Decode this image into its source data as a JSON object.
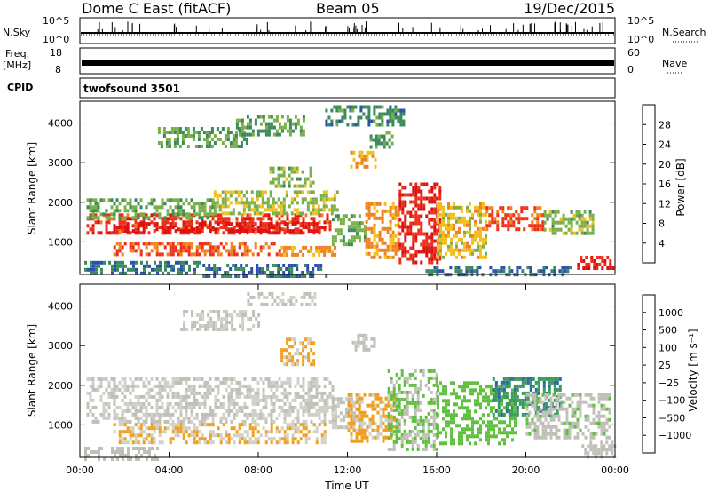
{
  "header": {
    "station": "Dome C East (fitACF)",
    "beam": "Beam 05",
    "date": "19/Dec/2015"
  },
  "side_labels": {
    "nsky": "N.Sky",
    "nsearch": "N.Search",
    "freq": "Freq.",
    "freq_unit": "[MHz]",
    "nave": "Nave",
    "cpid": "CPID",
    "cpid_value": "twofsound 3501"
  },
  "strip_axes": {
    "noise_left": [
      "10^5",
      "10^0"
    ],
    "noise_right": [
      "10^5",
      "10^0"
    ],
    "freq_left": [
      "18",
      "8"
    ],
    "nave_right": [
      "60",
      "0"
    ]
  },
  "colors": {
    "power_scale": [
      "#1a1aff",
      "#2a50b0",
      "#3a8a5a",
      "#7ab04a",
      "#f0c020",
      "#f08020",
      "#ee3018",
      "#dd1010"
    ],
    "velocity_scale": [
      "#2040c0",
      "#2d6aa8",
      "#3a9a5a",
      "#60c040",
      "#c0c0b8",
      "#d0d0c8",
      "#f0a020",
      "#f07010",
      "#ee3010",
      "#dd1010"
    ]
  },
  "chart_data": [
    {
      "type": "heatmap",
      "name": "power",
      "xlabel": "",
      "ylabel": "Slant Range [km]",
      "x_range_hours": [
        0,
        24
      ],
      "ylim_km": [
        180,
        4550
      ],
      "y_ticks": [
        "1000",
        "2000",
        "3000",
        "4000"
      ],
      "colorbar_title": "Power [dB]",
      "colorbar_ticks": [
        "4",
        "8",
        "12",
        "16",
        "20",
        "24",
        "28"
      ],
      "colorbar_range": [
        0,
        32
      ],
      "blobs": [
        {
          "t0": 0.3,
          "t1": 11.2,
          "r0": 1250,
          "r1": 1720,
          "v": 26
        },
        {
          "t0": 1.5,
          "t1": 11.0,
          "r0": 1300,
          "r1": 1500,
          "v": 29
        },
        {
          "t0": 0.3,
          "t1": 6.0,
          "r0": 1650,
          "r1": 2100,
          "v": 13
        },
        {
          "t0": 6.0,
          "t1": 11.5,
          "r0": 1700,
          "r1": 2300,
          "v": 15
        },
        {
          "t0": 1.5,
          "t1": 9.0,
          "r0": 650,
          "r1": 1000,
          "v": 24
        },
        {
          "t0": 9.0,
          "t1": 11.5,
          "r0": 650,
          "r1": 900,
          "v": 21
        },
        {
          "t0": 0.2,
          "t1": 5.5,
          "r0": 180,
          "r1": 520,
          "v": 9
        },
        {
          "t0": 5.5,
          "t1": 11.0,
          "r0": 180,
          "r1": 450,
          "v": 8
        },
        {
          "t0": 11.3,
          "t1": 12.8,
          "r0": 900,
          "r1": 1700,
          "v": 13
        },
        {
          "t0": 12.8,
          "t1": 14.3,
          "r0": 600,
          "r1": 2000,
          "v": 21
        },
        {
          "t0": 14.3,
          "t1": 16.2,
          "r0": 500,
          "r1": 2500,
          "v": 28
        },
        {
          "t0": 16.0,
          "t1": 18.2,
          "r0": 600,
          "r1": 2000,
          "v": 18
        },
        {
          "t0": 18.2,
          "t1": 20.8,
          "r0": 1350,
          "r1": 1900,
          "v": 25
        },
        {
          "t0": 20.8,
          "t1": 23.0,
          "r0": 1200,
          "r1": 1800,
          "v": 14
        },
        {
          "t0": 22.3,
          "t1": 23.9,
          "r0": 300,
          "r1": 650,
          "v": 27
        },
        {
          "t0": 15.5,
          "t1": 22.0,
          "r0": 180,
          "r1": 400,
          "v": 8
        },
        {
          "t0": 12.0,
          "t1": 13.2,
          "r0": 2900,
          "r1": 3300,
          "v": 19
        },
        {
          "t0": 3.5,
          "t1": 7.5,
          "r0": 3400,
          "r1": 3900,
          "v": 12
        },
        {
          "t0": 7.0,
          "t1": 10.0,
          "r0": 3700,
          "r1": 4200,
          "v": 12
        },
        {
          "t0": 11.0,
          "t1": 14.5,
          "r0": 4000,
          "r1": 4450,
          "v": 10
        },
        {
          "t0": 8.5,
          "t1": 10.5,
          "r0": 2400,
          "r1": 2900,
          "v": 14
        },
        {
          "t0": 13.0,
          "t1": 14.0,
          "r0": 3400,
          "r1": 3800,
          "v": 12
        }
      ]
    },
    {
      "type": "heatmap",
      "name": "velocity",
      "xlabel": "Time UT",
      "ylabel": "Slant Range [km]",
      "x_range_hours": [
        0,
        24
      ],
      "ylim_km": [
        180,
        4550
      ],
      "x_ticks": [
        "00:00",
        "04:00",
        "08:00",
        "12:00",
        "16:00",
        "20:00",
        "00:00"
      ],
      "y_ticks": [
        "1000",
        "2000",
        "3000",
        "4000"
      ],
      "colorbar_title": "Velocity [m s^-1]",
      "colorbar_ticks": [
        "1000",
        "500",
        "100",
        "25",
        "−25",
        "−100",
        "−500",
        "−1000"
      ],
      "colorbar_range": [
        -1250,
        1250
      ],
      "blobs": [
        {
          "t0": 0.3,
          "t1": 11.3,
          "r0": 1100,
          "r1": 2200,
          "v": 0
        },
        {
          "t0": 1.5,
          "t1": 11.0,
          "r0": 600,
          "r1": 1050,
          "v": -250
        },
        {
          "t0": 0.2,
          "t1": 3.5,
          "r0": 180,
          "r1": 450,
          "v": 150
        },
        {
          "t0": 11.3,
          "t1": 12.5,
          "r0": 900,
          "r1": 1700,
          "v": 30
        },
        {
          "t0": 12.0,
          "t1": 14.2,
          "r0": 600,
          "r1": 1800,
          "v": -300
        },
        {
          "t0": 13.8,
          "t1": 16.0,
          "r0": 400,
          "r1": 2400,
          "v": 250
        },
        {
          "t0": 16.0,
          "t1": 19.5,
          "r0": 500,
          "r1": 2100,
          "v": 350
        },
        {
          "t0": 18.5,
          "t1": 21.5,
          "r0": 1300,
          "r1": 2200,
          "v": 700
        },
        {
          "t0": 20.0,
          "t1": 23.8,
          "r0": 700,
          "r1": 1800,
          "v": 200
        },
        {
          "t0": 22.5,
          "t1": 24.0,
          "r0": 180,
          "r1": 600,
          "v": 120
        },
        {
          "t0": 7.5,
          "t1": 10.5,
          "r0": 4000,
          "r1": 4350,
          "v": 0
        },
        {
          "t0": 9.0,
          "t1": 10.5,
          "r0": 2500,
          "r1": 3200,
          "v": -300
        },
        {
          "t0": 12.2,
          "t1": 13.2,
          "r0": 2900,
          "r1": 3300,
          "v": 50
        },
        {
          "t0": 4.5,
          "t1": 8.0,
          "r0": 3400,
          "r1": 3900,
          "v": 0
        }
      ]
    }
  ]
}
